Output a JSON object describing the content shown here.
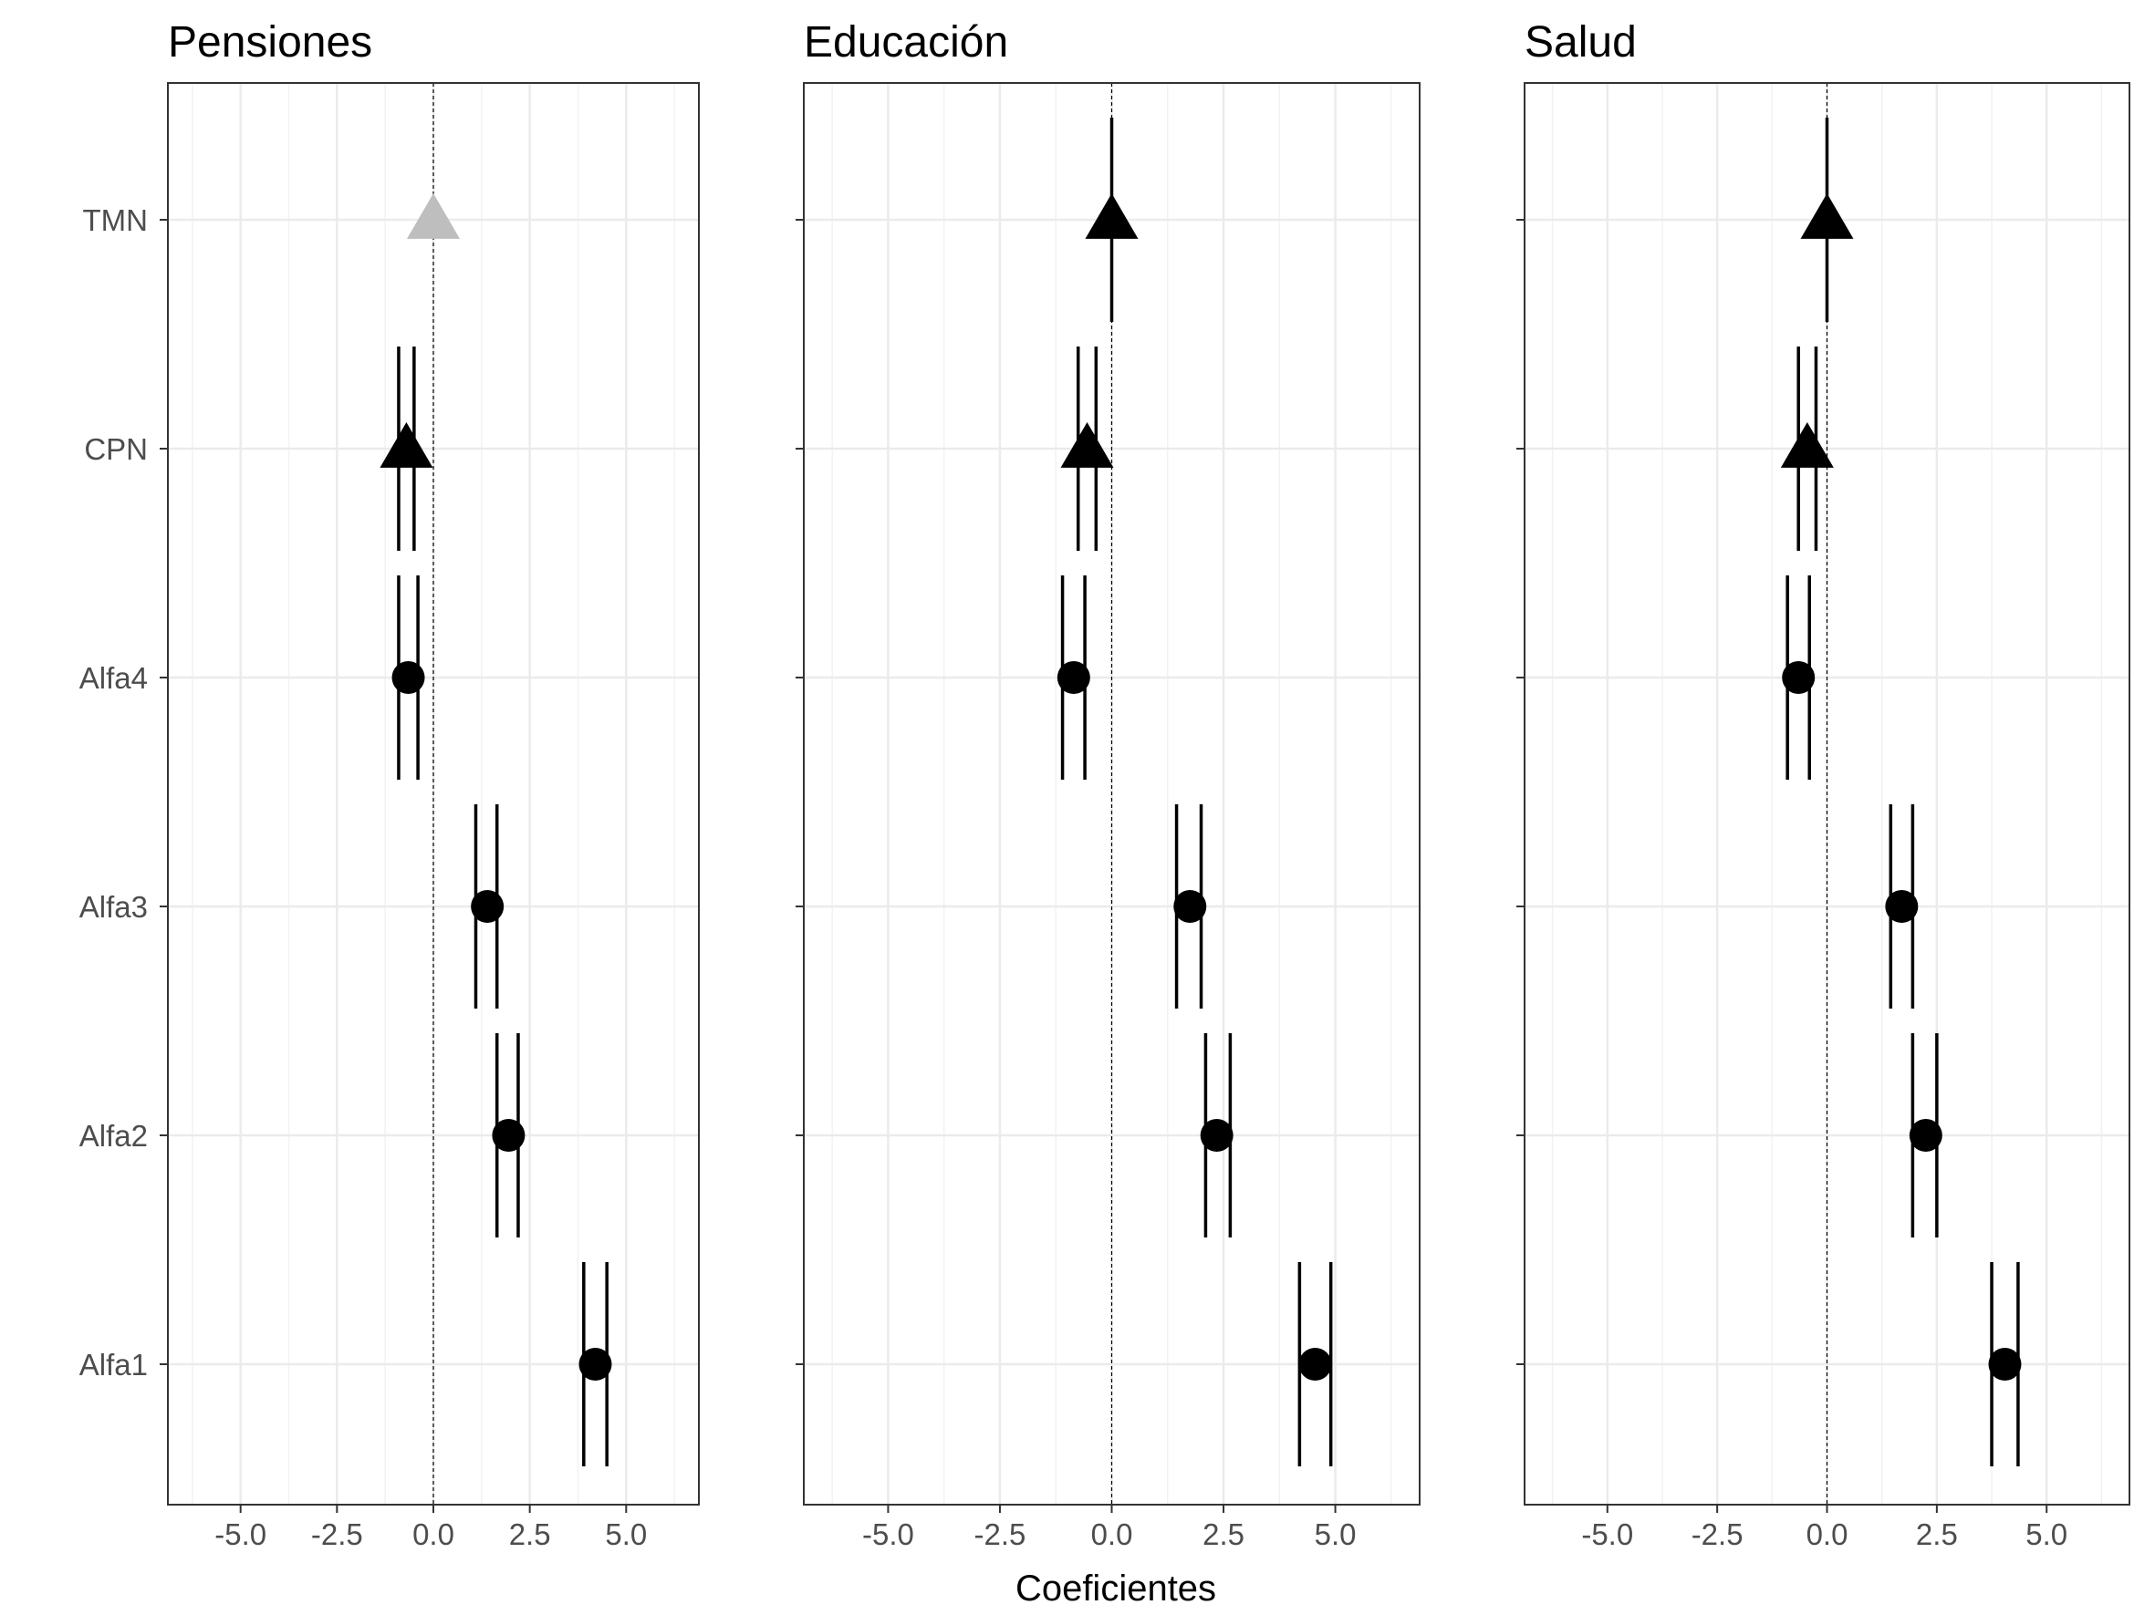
{
  "chart_data": {
    "type": "coefficient-plot",
    "xlabel": "Coeficientes",
    "xlim": [
      -6.5,
      6.5
    ],
    "x_ticks": [
      -5.0,
      -2.5,
      0.0,
      2.5,
      5.0
    ],
    "x_tick_labels": [
      "-5.0",
      "-2.5",
      "0.0",
      "2.5",
      "5.0"
    ],
    "categories": [
      "TMN",
      "CPN",
      "Alfa4",
      "Alfa3",
      "Alfa2",
      "Alfa1"
    ],
    "reference_line": 0,
    "grid": true,
    "colors": {
      "point": "#000000",
      "reference_point": "#bebebe",
      "grid": "#ebebeb",
      "panel_border": "#333333"
    },
    "panels": [
      {
        "title": "Pensiones",
        "points": [
          {
            "term": "TMN",
            "shape": "triangle",
            "color": "reference",
            "estimate": 0.0,
            "ci_low": 0.0,
            "ci_high": 0.0,
            "ci_inner_low": 0.0,
            "ci_inner_high": 0.0
          },
          {
            "term": "CPN",
            "shape": "triangle",
            "color": "default",
            "estimate": -0.7,
            "ci_low": -0.9,
            "ci_high": -0.5,
            "ci_inner_low": -0.9,
            "ci_inner_high": -0.5
          },
          {
            "term": "Alfa4",
            "shape": "circle",
            "color": "default",
            "estimate": -0.65,
            "ci_low": -0.9,
            "ci_high": -0.4,
            "ci_inner_low": -0.9,
            "ci_inner_high": -0.4
          },
          {
            "term": "Alfa3",
            "shape": "circle",
            "color": "default",
            "estimate": 1.4,
            "ci_low": 1.1,
            "ci_high": 1.65,
            "ci_inner_low": 1.1,
            "ci_inner_high": 1.65
          },
          {
            "term": "Alfa2",
            "shape": "circle",
            "color": "default",
            "estimate": 1.95,
            "ci_low": 1.65,
            "ci_high": 2.2,
            "ci_inner_low": 1.65,
            "ci_inner_high": 2.2
          },
          {
            "term": "Alfa1",
            "shape": "circle",
            "color": "default",
            "estimate": 4.2,
            "ci_low": 3.9,
            "ci_high": 4.5,
            "ci_inner_low": 3.9,
            "ci_inner_high": 4.5
          }
        ]
      },
      {
        "title": "Educación",
        "points": [
          {
            "term": "TMN",
            "shape": "triangle",
            "color": "default",
            "estimate": 0.0,
            "ci_low": 0.0,
            "ci_high": 0.0,
            "whisker_top": 2.2,
            "whisker_bottom": -2.2
          },
          {
            "term": "CPN",
            "shape": "triangle",
            "color": "default",
            "estimate": -0.55,
            "ci_low": -0.75,
            "ci_high": -0.35,
            "ci_inner_low": -0.75,
            "ci_inner_high": -0.35
          },
          {
            "term": "Alfa4",
            "shape": "circle",
            "color": "default",
            "estimate": -0.85,
            "ci_low": -1.1,
            "ci_high": -0.6,
            "ci_inner_low": -1.1,
            "ci_inner_high": -0.6
          },
          {
            "term": "Alfa3",
            "shape": "circle",
            "color": "default",
            "estimate": 1.75,
            "ci_low": 1.45,
            "ci_high": 2.0,
            "ci_inner_low": 1.45,
            "ci_inner_high": 2.0
          },
          {
            "term": "Alfa2",
            "shape": "circle",
            "color": "default",
            "estimate": 2.35,
            "ci_low": 2.1,
            "ci_high": 2.65,
            "ci_inner_low": 2.1,
            "ci_inner_high": 2.65
          },
          {
            "term": "Alfa1",
            "shape": "circle",
            "color": "default",
            "estimate": 4.55,
            "ci_low": 4.2,
            "ci_high": 4.9,
            "ci_inner_low": 4.2,
            "ci_inner_high": 4.9
          }
        ]
      },
      {
        "title": "Salud",
        "points": [
          {
            "term": "TMN",
            "shape": "triangle",
            "color": "default",
            "estimate": 0.0,
            "ci_low": 0.0,
            "ci_high": 0.0
          },
          {
            "term": "CPN",
            "shape": "triangle",
            "color": "default",
            "estimate": -0.45,
            "ci_low": -0.65,
            "ci_high": -0.25,
            "ci_inner_low": -0.65,
            "ci_inner_high": -0.25
          },
          {
            "term": "Alfa4",
            "shape": "circle",
            "color": "default",
            "estimate": -0.65,
            "ci_low": -0.9,
            "ci_high": -0.4,
            "ci_inner_low": -0.9,
            "ci_inner_high": -0.4
          },
          {
            "term": "Alfa3",
            "shape": "circle",
            "color": "default",
            "estimate": 1.7,
            "ci_low": 1.45,
            "ci_high": 1.95,
            "ci_inner_low": 1.45,
            "ci_inner_high": 1.95
          },
          {
            "term": "Alfa2",
            "shape": "circle",
            "color": "default",
            "estimate": 2.25,
            "ci_low": 1.95,
            "ci_high": 2.5,
            "ci_inner_low": 1.95,
            "ci_inner_high": 2.5
          },
          {
            "term": "Alfa1",
            "shape": "circle",
            "color": "default",
            "estimate": 4.05,
            "ci_low": 3.75,
            "ci_high": 4.35,
            "ci_inner_low": 3.75,
            "ci_inner_high": 4.35
          }
        ]
      }
    ]
  }
}
